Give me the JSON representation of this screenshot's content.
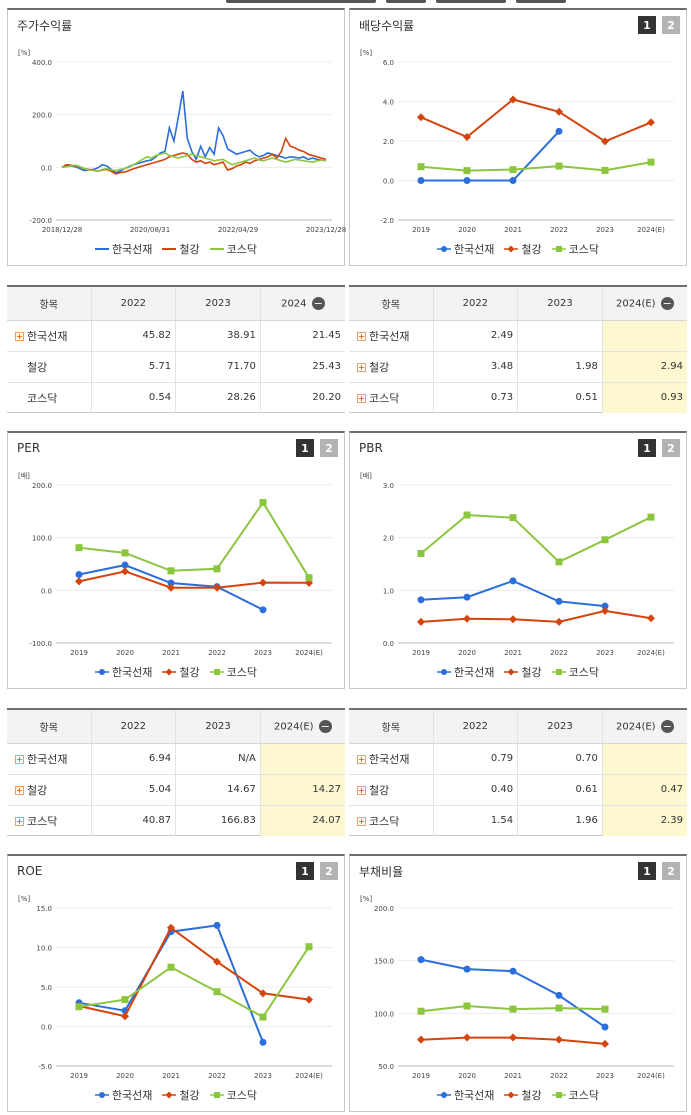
{
  "legend": {
    "korean_wire": "한국선재",
    "steel": "철강",
    "kosdaq": "코스닥"
  },
  "colors": {
    "korean_wire": "#2a6fdb",
    "steel": "#d4440d",
    "kosdaq": "#8cc63f",
    "highlight": "#fdf8cf"
  },
  "pager": {
    "one": "1",
    "two": "2"
  },
  "minus_icon": "−",
  "plus_icon": "+",
  "charts": {
    "stock": {
      "title": "주가수익률",
      "chart_data": {
        "type": "line",
        "unit": "[%]",
        "ylim": [
          -200,
          400
        ],
        "yticks": [
          "400.0",
          "200.0",
          "0.0",
          "-200.0"
        ],
        "xticks": [
          "2018/12/28",
          "2020/08/31",
          "2022/04/29",
          "2023/12/28"
        ],
        "series": [
          {
            "name": "한국선재",
            "values": [
              0,
              8,
              5,
              2,
              -5,
              -12,
              -10,
              -8,
              -2,
              10,
              5,
              -8,
              -20,
              -15,
              -5,
              3,
              10,
              15,
              20,
              25,
              28,
              40,
              55,
              60,
              150,
              100,
              190,
              290,
              110,
              60,
              30,
              80,
              40,
              75,
              50,
              150,
              120,
              70,
              60,
              50,
              55,
              60,
              65,
              50,
              40,
              45,
              55,
              50,
              45,
              40,
              35,
              40,
              38,
              35,
              40,
              30,
              35,
              30,
              28,
              25
            ]
          },
          {
            "name": "철강",
            "values": [
              0,
              10,
              8,
              5,
              2,
              -5,
              -8,
              -10,
              -15,
              -10,
              -8,
              -15,
              -25,
              -20,
              -18,
              -12,
              -5,
              0,
              5,
              10,
              15,
              20,
              25,
              30,
              40,
              45,
              50,
              55,
              50,
              30,
              20,
              25,
              15,
              20,
              10,
              15,
              20,
              -10,
              -5,
              5,
              10,
              20,
              15,
              25,
              30,
              35,
              40,
              50,
              35,
              60,
              110,
              80,
              75,
              65,
              60,
              50,
              45,
              40,
              35,
              30
            ]
          },
          {
            "name": "코스닥",
            "values": [
              0,
              2,
              5,
              8,
              3,
              -5,
              -10,
              -12,
              -15,
              -8,
              -5,
              -10,
              -12,
              -8,
              -5,
              0,
              10,
              20,
              30,
              40,
              35,
              45,
              50,
              55,
              45,
              40,
              35,
              40,
              45,
              50,
              45,
              40,
              35,
              30,
              25,
              28,
              30,
              20,
              10,
              15,
              20,
              25,
              30,
              35,
              28,
              25,
              30,
              35,
              30,
              25,
              20,
              25,
              30,
              28,
              25,
              22,
              20,
              25,
              28,
              25
            ]
          }
        ]
      }
    },
    "dividend": {
      "title": "배당수익률",
      "chart_data": {
        "type": "line",
        "unit": "[%]",
        "ylim": [
          -2,
          6
        ],
        "yticks": [
          "6.0",
          "4.0",
          "2.0",
          "0.0",
          "-2.0"
        ],
        "categories": [
          "2019",
          "2020",
          "2021",
          "2022",
          "2023",
          "2024(E)"
        ],
        "series": [
          {
            "name": "한국선재",
            "values": [
              0,
              0,
              0,
              2.49,
              null,
              null
            ]
          },
          {
            "name": "철강",
            "values": [
              3.2,
              2.2,
              4.1,
              3.48,
              1.98,
              2.94
            ]
          },
          {
            "name": "코스닥",
            "values": [
              0.7,
              0.5,
              0.55,
              0.73,
              0.51,
              0.93
            ]
          }
        ]
      }
    },
    "per": {
      "title": "PER",
      "chart_data": {
        "type": "line",
        "unit": "[배]",
        "ylim": [
          -100,
          200
        ],
        "yticks": [
          "200.0",
          "100.0",
          "0.0",
          "-100.0"
        ],
        "categories": [
          "2019",
          "2020",
          "2021",
          "2022",
          "2023",
          "2024(E)"
        ],
        "series": [
          {
            "name": "한국선재",
            "values": [
              30,
              48,
              14,
              6.94,
              -37,
              null
            ]
          },
          {
            "name": "철강",
            "values": [
              17,
              36,
              5,
              5.04,
              14.67,
              14.27
            ]
          },
          {
            "name": "코스닥",
            "values": [
              81,
              71,
              37,
              40.87,
              166.83,
              24.07
            ]
          }
        ]
      }
    },
    "pbr": {
      "title": "PBR",
      "chart_data": {
        "type": "line",
        "unit": "[배]",
        "ylim": [
          0,
          3
        ],
        "yticks": [
          "3.0",
          "2.0",
          "1.0",
          "0.0"
        ],
        "categories": [
          "2019",
          "2020",
          "2021",
          "2022",
          "2023",
          "2024(E)"
        ],
        "series": [
          {
            "name": "한국선재",
            "values": [
              0.82,
              0.87,
              1.18,
              0.79,
              0.7,
              null
            ]
          },
          {
            "name": "철강",
            "values": [
              0.4,
              0.46,
              0.45,
              0.4,
              0.61,
              0.47
            ]
          },
          {
            "name": "코스닥",
            "values": [
              1.7,
              2.43,
              2.38,
              1.54,
              1.96,
              2.39
            ]
          }
        ]
      }
    },
    "roe": {
      "title": "ROE",
      "chart_data": {
        "type": "line",
        "unit": "[%]",
        "ylim": [
          -5,
          15
        ],
        "yticks": [
          "15.0",
          "10.0",
          "5.0",
          "0.0",
          "-5.0"
        ],
        "categories": [
          "2019",
          "2020",
          "2021",
          "2022",
          "2023",
          "2024(E)"
        ],
        "series": [
          {
            "name": "한국선재",
            "values": [
              3.0,
              2.0,
              12.0,
              12.8,
              -2.0,
              null
            ]
          },
          {
            "name": "철강",
            "values": [
              2.6,
              1.3,
              12.5,
              8.2,
              4.2,
              3.4
            ]
          },
          {
            "name": "코스닥",
            "values": [
              2.5,
              3.4,
              7.5,
              4.4,
              1.2,
              10.1
            ]
          }
        ]
      }
    },
    "debt": {
      "title": "부채비율",
      "chart_data": {
        "type": "line",
        "unit": "[%]",
        "ylim": [
          50,
          200
        ],
        "yticks": [
          "200.0",
          "150.0",
          "100.0",
          "50.0"
        ],
        "categories": [
          "2019",
          "2020",
          "2021",
          "2022",
          "2023",
          "2024(E)"
        ],
        "series": [
          {
            "name": "한국선재",
            "values": [
              151,
              142,
              140,
              117,
              87,
              null
            ]
          },
          {
            "name": "철강",
            "values": [
              75,
              77,
              77,
              75,
              71,
              null
            ]
          },
          {
            "name": "코스닥",
            "values": [
              102,
              107,
              104,
              105,
              104,
              null
            ]
          }
        ]
      }
    }
  },
  "tables": {
    "stock": {
      "headers": [
        "항목",
        "2022",
        "2023",
        "2024"
      ],
      "rows": [
        {
          "name": "한국선재",
          "plus": true,
          "values": [
            "45.82",
            "38.91",
            "21.45"
          ]
        },
        {
          "name": "철강",
          "plus": false,
          "values": [
            "5.71",
            "71.70",
            "25.43"
          ]
        },
        {
          "name": "코스닥",
          "plus": false,
          "values": [
            "0.54",
            "28.26",
            "20.20"
          ]
        }
      ]
    },
    "dividend": {
      "headers": [
        "항목",
        "2022",
        "2023",
        "2024(E)"
      ],
      "rows": [
        {
          "name": "한국선재",
          "plus": true,
          "values": [
            "2.49",
            "",
            ""
          ]
        },
        {
          "name": "철강",
          "plus": true,
          "values": [
            "3.48",
            "1.98",
            "2.94"
          ]
        },
        {
          "name": "코스닥",
          "plus": true,
          "values": [
            "0.73",
            "0.51",
            "0.93"
          ]
        }
      ]
    },
    "per": {
      "headers": [
        "항목",
        "2022",
        "2023",
        "2024(E)"
      ],
      "rows": [
        {
          "name": "한국선재",
          "plus": true,
          "values": [
            "6.94",
            "N/A",
            ""
          ]
        },
        {
          "name": "철강",
          "plus": true,
          "values": [
            "5.04",
            "14.67",
            "14.27"
          ]
        },
        {
          "name": "코스닥",
          "plus": true,
          "values": [
            "40.87",
            "166.83",
            "24.07"
          ]
        }
      ]
    },
    "pbr": {
      "headers": [
        "항목",
        "2022",
        "2023",
        "2024(E)"
      ],
      "rows": [
        {
          "name": "한국선재",
          "plus": true,
          "values": [
            "0.79",
            "0.70",
            ""
          ]
        },
        {
          "name": "철강",
          "plus": true,
          "values": [
            "0.40",
            "0.61",
            "0.47"
          ]
        },
        {
          "name": "코스닥",
          "plus": true,
          "values": [
            "1.54",
            "1.96",
            "2.39"
          ]
        }
      ]
    }
  }
}
